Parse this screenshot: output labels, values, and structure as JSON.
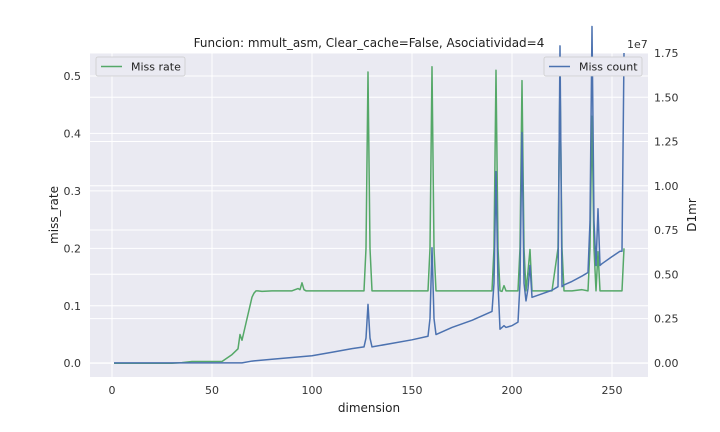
{
  "chart_data": {
    "type": "line",
    "title": "Funcion: mmult_asm, Clear_cache=False, Asociatividad=4",
    "xlabel": "dimension",
    "ylabel_left": "miss_rate",
    "ylabel_right": "D1mr",
    "right_offset_text": "1e7",
    "xlim": [
      -11,
      268
    ],
    "ylim_left": [
      -0.024,
      0.54
    ],
    "ylim_right": [
      -0.08,
      1.75
    ],
    "x_ticks": [
      0,
      50,
      100,
      150,
      200,
      250
    ],
    "x_tick_labels": [
      "0",
      "50",
      "100",
      "150",
      "200",
      "250"
    ],
    "y_ticks_left": [
      0.0,
      0.1,
      0.2,
      0.3,
      0.4,
      0.5
    ],
    "y_tick_labels_left": [
      "0.0",
      "0.1",
      "0.2",
      "0.3",
      "0.4",
      "0.5"
    ],
    "y_ticks_right": [
      0.0,
      0.25,
      0.5,
      0.75,
      1.0,
      1.25,
      1.5,
      1.75
    ],
    "y_tick_labels_right": [
      "0.00",
      "0.25",
      "0.50",
      "0.75",
      "1.00",
      "1.25",
      "1.50",
      "1.75"
    ],
    "grid": true,
    "series": [
      {
        "name": "Miss rate",
        "axis": "left",
        "color": "#55a868",
        "legend_position": "upper-left",
        "x": [
          1,
          30,
          35,
          40,
          45,
          50,
          55,
          60,
          63,
          64,
          65,
          66,
          68,
          70,
          71,
          72,
          73,
          75,
          80,
          85,
          90,
          93,
          94,
          95,
          96,
          97,
          100,
          110,
          120,
          126,
          127,
          128,
          129,
          130,
          140,
          150,
          158,
          159,
          160,
          161,
          162,
          170,
          180,
          190,
          191,
          192,
          193,
          194,
          195,
          196,
          197,
          200,
          203,
          204,
          205,
          206,
          207,
          208,
          209,
          210,
          215,
          220,
          223,
          224,
          225,
          226,
          230,
          235,
          238,
          239,
          240,
          241,
          242,
          243,
          244,
          245,
          250,
          254,
          255,
          256
        ],
        "values": [
          0.0,
          0.0,
          0.001,
          0.003,
          0.003,
          0.003,
          0.003,
          0.015,
          0.025,
          0.05,
          0.04,
          0.055,
          0.085,
          0.115,
          0.122,
          0.126,
          0.126,
          0.125,
          0.126,
          0.126,
          0.126,
          0.13,
          0.128,
          0.14,
          0.128,
          0.126,
          0.126,
          0.126,
          0.126,
          0.126,
          0.2,
          0.507,
          0.2,
          0.126,
          0.126,
          0.126,
          0.126,
          0.2,
          0.516,
          0.2,
          0.126,
          0.126,
          0.126,
          0.126,
          0.2,
          0.51,
          0.2,
          0.126,
          0.125,
          0.135,
          0.126,
          0.126,
          0.126,
          0.2,
          0.492,
          0.2,
          0.126,
          0.16,
          0.198,
          0.126,
          0.126,
          0.126,
          0.2,
          0.5,
          0.2,
          0.126,
          0.126,
          0.128,
          0.126,
          0.2,
          0.43,
          0.2,
          0.126,
          0.194,
          0.126,
          0.126,
          0.126,
          0.126,
          0.126,
          0.2
        ]
      },
      {
        "name": "Miss count",
        "axis": "right",
        "color": "#4c72b0",
        "legend_position": "upper-right",
        "x": [
          1,
          50,
          60,
          63,
          65,
          70,
          80,
          90,
          100,
          110,
          120,
          126,
          127,
          128,
          129,
          130,
          140,
          150,
          158,
          159,
          160,
          161,
          162,
          170,
          180,
          190,
          191,
          192,
          193,
          194,
          195,
          196,
          197,
          200,
          203,
          204,
          205,
          206,
          207,
          208,
          209,
          210,
          215,
          220,
          223,
          224,
          225,
          226,
          230,
          235,
          238,
          239,
          240,
          241,
          242,
          243,
          244,
          245,
          250,
          254,
          255,
          256
        ],
        "values_1e7": [
          0.0,
          0.0,
          0.0,
          0.0,
          0.0,
          0.01,
          0.02,
          0.03,
          0.04,
          0.06,
          0.08,
          0.09,
          0.14,
          0.33,
          0.14,
          0.09,
          0.11,
          0.13,
          0.15,
          0.25,
          0.65,
          0.25,
          0.16,
          0.2,
          0.24,
          0.29,
          0.45,
          1.08,
          0.45,
          0.19,
          0.2,
          0.21,
          0.2,
          0.21,
          0.23,
          0.45,
          1.3,
          0.45,
          0.35,
          0.42,
          0.55,
          0.37,
          0.39,
          0.41,
          0.43,
          1.79,
          0.43,
          0.44,
          0.46,
          0.49,
          0.51,
          0.8,
          1.9,
          0.8,
          0.55,
          0.87,
          0.55,
          0.56,
          0.6,
          0.63,
          0.63,
          1.75
        ]
      }
    ]
  }
}
